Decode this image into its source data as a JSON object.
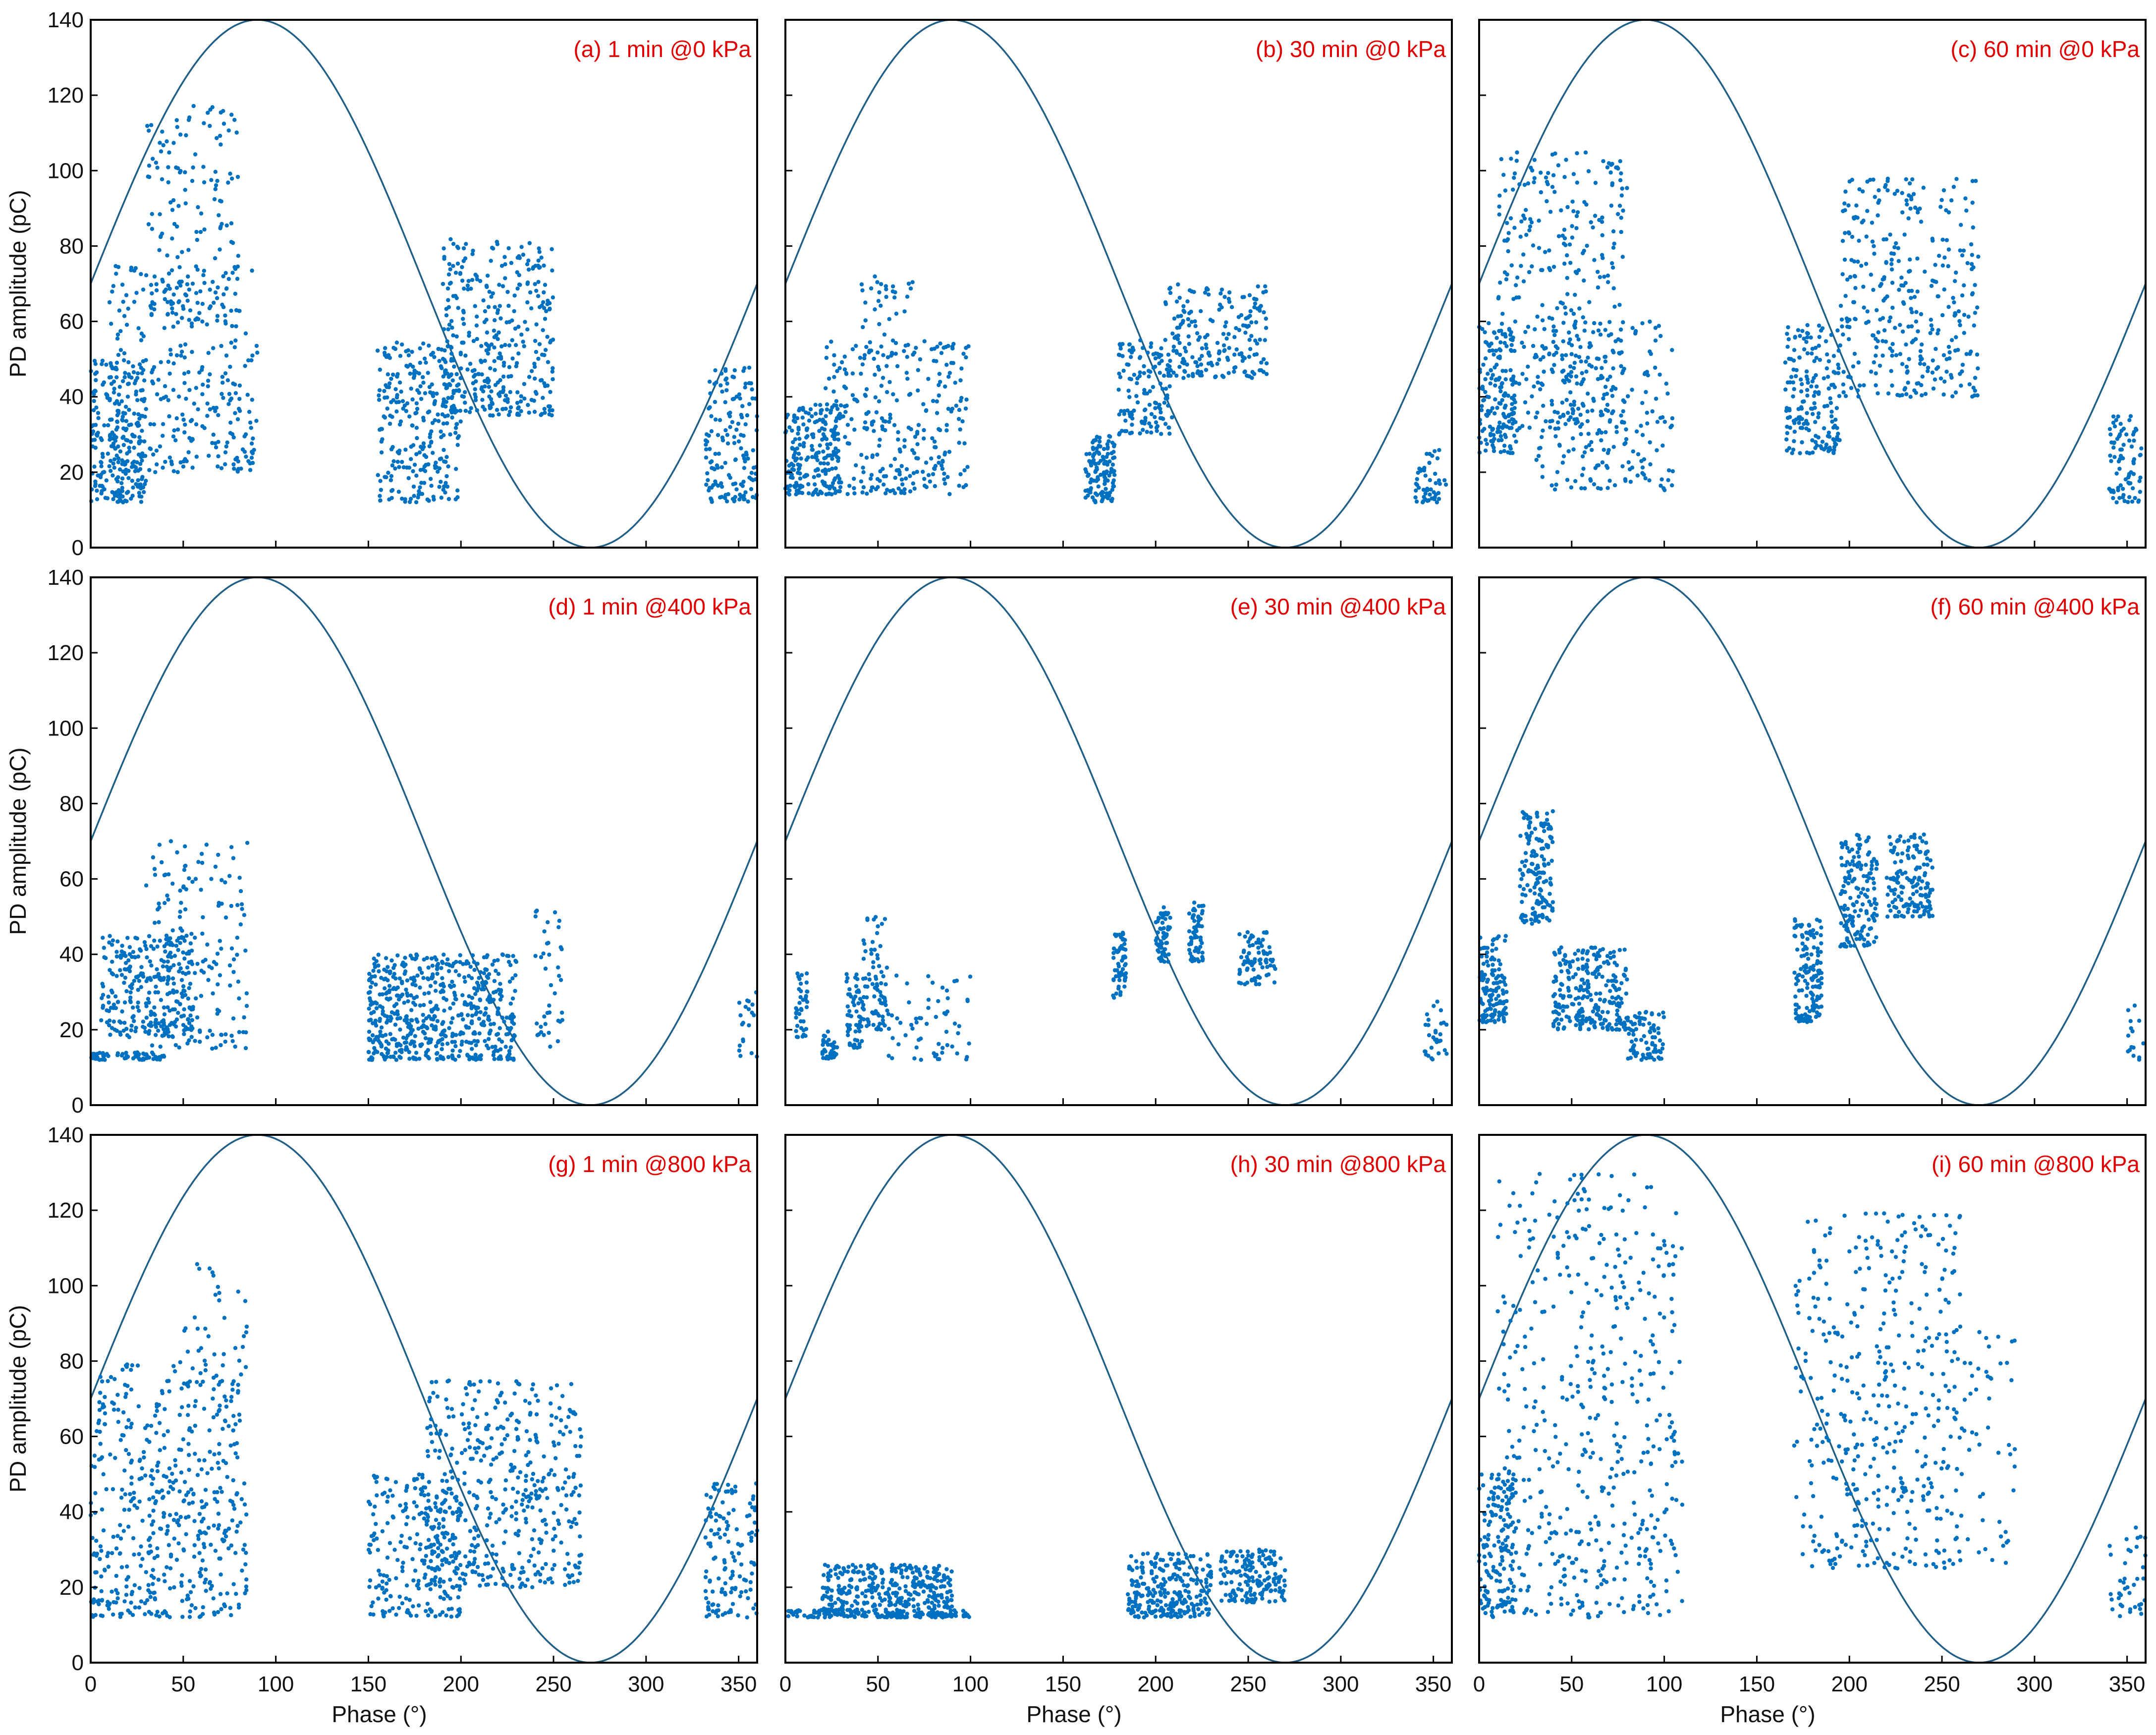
{
  "figure": {
    "colors": {
      "points": "#0070c0",
      "curve": "#1f5f87",
      "panel_title": "#e00000",
      "axis": "#000000"
    },
    "shared_axes": {
      "xlabel": "Phase (°)",
      "ylabel": "PD amplitude (pC)",
      "xlim": [
        0,
        360
      ],
      "ylim": [
        0,
        140
      ],
      "xticks": [
        0,
        50,
        100,
        150,
        200,
        250,
        300,
        350
      ],
      "yticks": [
        0,
        20,
        40,
        60,
        80,
        100,
        120,
        140
      ]
    }
  },
  "chart_data": [
    {
      "id": "a",
      "type": "scatter",
      "title": "(a) 1 min @0 kPa",
      "xlabel": "",
      "ylabel": "PD amplitude (pC)",
      "xlim": [
        0,
        360
      ],
      "ylim": [
        0,
        140
      ],
      "reference_curve": {
        "type": "sine",
        "offset": 70,
        "amplitude": 70,
        "period_deg": 360
      },
      "clusters": [
        {
          "x": [
            0,
            30
          ],
          "y": [
            12,
            50
          ],
          "n": 220
        },
        {
          "x": [
            10,
            90
          ],
          "y": [
            20,
            75
          ],
          "n": 330
        },
        {
          "x": [
            30,
            80
          ],
          "y": [
            60,
            118
          ],
          "n": 150
        },
        {
          "x": [
            155,
            200
          ],
          "y": [
            12,
            55
          ],
          "n": 280
        },
        {
          "x": [
            190,
            250
          ],
          "y": [
            35,
            82
          ],
          "n": 360
        },
        {
          "x": [
            332,
            360
          ],
          "y": [
            12,
            48
          ],
          "n": 150
        }
      ]
    },
    {
      "id": "b",
      "type": "scatter",
      "title": "(b) 30 min @0 kPa",
      "xlabel": "",
      "ylabel": "",
      "xlim": [
        0,
        360
      ],
      "ylim": [
        0,
        140
      ],
      "reference_curve": {
        "type": "sine",
        "offset": 70,
        "amplitude": 70,
        "period_deg": 360
      },
      "clusters": [
        {
          "x": [
            0,
            30
          ],
          "y": [
            14,
            38
          ],
          "n": 200
        },
        {
          "x": [
            20,
            100
          ],
          "y": [
            14,
            55
          ],
          "n": 300
        },
        {
          "x": [
            40,
            70
          ],
          "y": [
            50,
            72
          ],
          "n": 40
        },
        {
          "x": [
            162,
            178
          ],
          "y": [
            12,
            30
          ],
          "n": 130
        },
        {
          "x": [
            180,
            210
          ],
          "y": [
            30,
            55
          ],
          "n": 140
        },
        {
          "x": [
            205,
            260
          ],
          "y": [
            45,
            70
          ],
          "n": 200
        },
        {
          "x": [
            340,
            358
          ],
          "y": [
            12,
            26
          ],
          "n": 50
        }
      ]
    },
    {
      "id": "c",
      "type": "scatter",
      "title": "(c) 60 min @0 kPa",
      "xlabel": "",
      "ylabel": "",
      "xlim": [
        0,
        360
      ],
      "ylim": [
        0,
        140
      ],
      "reference_curve": {
        "type": "sine",
        "offset": 70,
        "amplitude": 70,
        "period_deg": 360
      },
      "clusters": [
        {
          "x": [
            0,
            20
          ],
          "y": [
            25,
            60
          ],
          "n": 160
        },
        {
          "x": [
            10,
            80
          ],
          "y": [
            30,
            105
          ],
          "n": 340
        },
        {
          "x": [
            30,
            105
          ],
          "y": [
            15,
            60
          ],
          "n": 200
        },
        {
          "x": [
            165,
            195
          ],
          "y": [
            25,
            60
          ],
          "n": 180
        },
        {
          "x": [
            195,
            270
          ],
          "y": [
            40,
            98
          ],
          "n": 340
        },
        {
          "x": [
            340,
            358
          ],
          "y": [
            12,
            35
          ],
          "n": 80
        }
      ]
    },
    {
      "id": "d",
      "type": "scatter",
      "title": "(d) 1 min @400 kPa",
      "xlabel": "",
      "ylabel": "PD amplitude (pC)",
      "xlim": [
        0,
        360
      ],
      "ylim": [
        0,
        140
      ],
      "reference_curve": {
        "type": "sine",
        "offset": 70,
        "amplitude": 70,
        "period_deg": 360
      },
      "clusters": [
        {
          "x": [
            0,
            40
          ],
          "y": [
            12,
            14
          ],
          "n": 60
        },
        {
          "x": [
            5,
            55
          ],
          "y": [
            18,
            45
          ],
          "n": 260
        },
        {
          "x": [
            30,
            85
          ],
          "y": [
            15,
            70
          ],
          "n": 180
        },
        {
          "x": [
            150,
            230
          ],
          "y": [
            12,
            40
          ],
          "n": 600
        },
        {
          "x": [
            240,
            255
          ],
          "y": [
            15,
            55
          ],
          "n": 40
        },
        {
          "x": [
            350,
            360
          ],
          "y": [
            12,
            30
          ],
          "n": 20
        }
      ]
    },
    {
      "id": "e",
      "type": "scatter",
      "title": "(e) 30 min @400 kPa",
      "xlabel": "",
      "ylabel": "",
      "xlim": [
        0,
        360
      ],
      "ylim": [
        0,
        140
      ],
      "reference_curve": {
        "type": "sine",
        "offset": 70,
        "amplitude": 70,
        "period_deg": 360
      },
      "clusters": [
        {
          "x": [
            5,
            12
          ],
          "y": [
            18,
            35
          ],
          "n": 40
        },
        {
          "x": [
            20,
            28
          ],
          "y": [
            12,
            20
          ],
          "n": 40
        },
        {
          "x": [
            33,
            42
          ],
          "y": [
            15,
            35
          ],
          "n": 60
        },
        {
          "x": [
            42,
            55
          ],
          "y": [
            20,
            50
          ],
          "n": 80
        },
        {
          "x": [
            55,
            100
          ],
          "y": [
            12,
            35
          ],
          "n": 60
        },
        {
          "x": [
            177,
            184
          ],
          "y": [
            28,
            46
          ],
          "n": 60
        },
        {
          "x": [
            200,
            208
          ],
          "y": [
            38,
            53
          ],
          "n": 60
        },
        {
          "x": [
            218,
            226
          ],
          "y": [
            38,
            54
          ],
          "n": 60
        },
        {
          "x": [
            245,
            265
          ],
          "y": [
            32,
            46
          ],
          "n": 80
        },
        {
          "x": [
            345,
            358
          ],
          "y": [
            12,
            28
          ],
          "n": 30
        }
      ]
    },
    {
      "id": "f",
      "type": "scatter",
      "title": "(f) 60 min @400 kPa",
      "xlabel": "",
      "ylabel": "",
      "xlim": [
        0,
        360
      ],
      "ylim": [
        0,
        140
      ],
      "reference_curve": {
        "type": "sine",
        "offset": 70,
        "amplitude": 70,
        "period_deg": 360
      },
      "clusters": [
        {
          "x": [
            0,
            15
          ],
          "y": [
            22,
            45
          ],
          "n": 130
        },
        {
          "x": [
            22,
            40
          ],
          "y": [
            48,
            78
          ],
          "n": 160
        },
        {
          "x": [
            40,
            80
          ],
          "y": [
            20,
            42
          ],
          "n": 250
        },
        {
          "x": [
            80,
            100
          ],
          "y": [
            12,
            25
          ],
          "n": 80
        },
        {
          "x": [
            170,
            185
          ],
          "y": [
            22,
            50
          ],
          "n": 150
        },
        {
          "x": [
            195,
            215
          ],
          "y": [
            42,
            72
          ],
          "n": 150
        },
        {
          "x": [
            220,
            245
          ],
          "y": [
            50,
            72
          ],
          "n": 150
        },
        {
          "x": [
            350,
            360
          ],
          "y": [
            12,
            28
          ],
          "n": 15
        }
      ]
    },
    {
      "id": "g",
      "type": "scatter",
      "title": "(g) 1 min @800 kPa",
      "xlabel": "Phase (°)",
      "ylabel": "PD amplitude (pC)",
      "xlim": [
        0,
        360
      ],
      "ylim": [
        0,
        140
      ],
      "reference_curve": {
        "type": "sine",
        "offset": 70,
        "amplitude": 70,
        "period_deg": 360
      },
      "clusters": [
        {
          "x": [
            0,
            85
          ],
          "y": [
            12,
            80
          ],
          "n": 520
        },
        {
          "x": [
            50,
            85
          ],
          "y": [
            80,
            106
          ],
          "n": 30
        },
        {
          "x": [
            150,
            200
          ],
          "y": [
            12,
            50
          ],
          "n": 220
        },
        {
          "x": [
            180,
            265
          ],
          "y": [
            20,
            75
          ],
          "n": 460
        },
        {
          "x": [
            332,
            360
          ],
          "y": [
            12,
            48
          ],
          "n": 130
        }
      ]
    },
    {
      "id": "h",
      "type": "scatter",
      "title": "(h) 30 min @800 kPa",
      "xlabel": "Phase (°)",
      "ylabel": "",
      "xlim": [
        0,
        360
      ],
      "ylim": [
        0,
        140
      ],
      "reference_curve": {
        "type": "sine",
        "offset": 70,
        "amplitude": 70,
        "period_deg": 360
      },
      "clusters": [
        {
          "x": [
            0,
            100
          ],
          "y": [
            12,
            14
          ],
          "n": 120
        },
        {
          "x": [
            20,
            90
          ],
          "y": [
            12,
            26
          ],
          "n": 380
        },
        {
          "x": [
            185,
            230
          ],
          "y": [
            12,
            29
          ],
          "n": 260
        },
        {
          "x": [
            235,
            270
          ],
          "y": [
            16,
            30
          ],
          "n": 160
        }
      ]
    },
    {
      "id": "i",
      "type": "scatter",
      "title": "(i) 60 min @800 kPa",
      "xlabel": "Phase (°)",
      "ylabel": "",
      "xlim": [
        0,
        360
      ],
      "ylim": [
        0,
        140
      ],
      "reference_curve": {
        "type": "sine",
        "offset": 70,
        "amplitude": 70,
        "period_deg": 360
      },
      "clusters": [
        {
          "x": [
            0,
            20
          ],
          "y": [
            12,
            50
          ],
          "n": 150
        },
        {
          "x": [
            10,
            110
          ],
          "y": [
            12,
            130
          ],
          "n": 500
        },
        {
          "x": [
            170,
            260
          ],
          "y": [
            25,
            120
          ],
          "n": 420
        },
        {
          "x": [
            260,
            290
          ],
          "y": [
            25,
            90
          ],
          "n": 50
        },
        {
          "x": [
            340,
            360
          ],
          "y": [
            12,
            36
          ],
          "n": 40
        }
      ]
    }
  ]
}
